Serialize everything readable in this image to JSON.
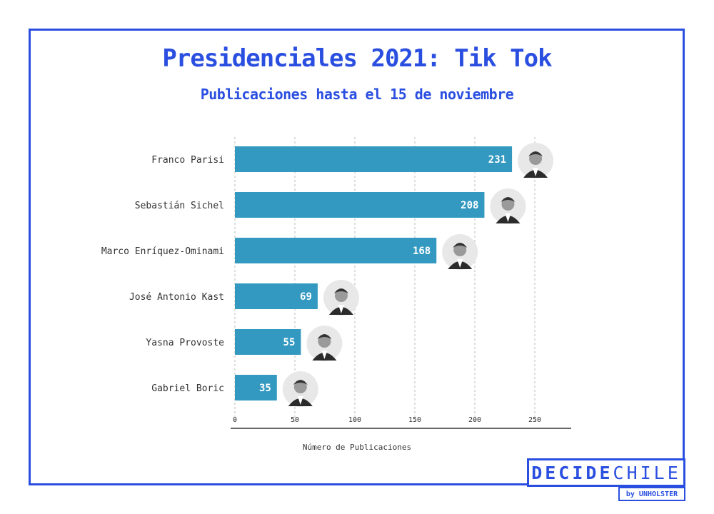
{
  "header": {
    "title": "Presidenciales 2021: Tik Tok",
    "subtitle": "Publicaciones hasta el 15 de noviembre"
  },
  "brand": {
    "logo_bold": "DECIDE",
    "logo_light": "CHILE",
    "byline": "by UNHOLSTER"
  },
  "colors": {
    "accent": "#2a4fe0",
    "bar": "#3399c0",
    "axis": "#333333"
  },
  "chart_data": {
    "type": "bar",
    "orientation": "horizontal",
    "categories": [
      "Franco Parisi",
      "Sebastián Sichel",
      "Marco Enríquez-Ominami",
      "José Antonio Kast",
      "Yasna Provoste",
      "Gabriel Boric"
    ],
    "values": [
      231,
      208,
      168,
      69,
      55,
      35
    ],
    "xlabel": "Número de Publicaciones",
    "ylabel": "",
    "xlim": [
      0,
      280
    ],
    "xticks": [
      0,
      50,
      100,
      150,
      200,
      250
    ],
    "grid": "vertical-dashed",
    "data_labels": "inside-end",
    "markers": "candidate-portrait-icon"
  }
}
